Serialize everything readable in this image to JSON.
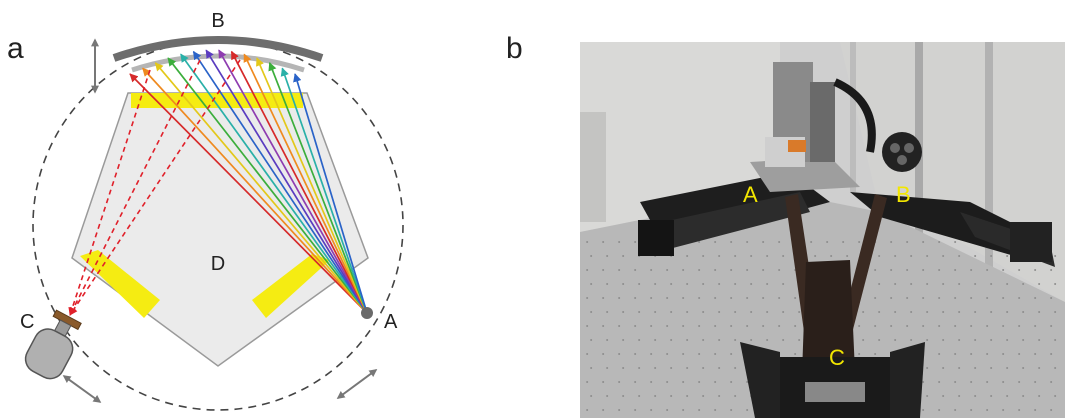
{
  "panel_a": {
    "letter": "a",
    "labels": {
      "curved_crystal": "B",
      "source": "A",
      "detector": "C",
      "sample": "D"
    }
  },
  "panel_b": {
    "letter": "b",
    "labels": {
      "stage_a": "A",
      "stage_b": "B",
      "stage_c": "C"
    }
  },
  "colors": {
    "highlight_yellow": "#f5ec12",
    "photo_label_yellow": "#f2e600",
    "dashed_ray": "#e0202a",
    "crystal_gray": "#6d6d6d",
    "pentagon_fill": "#ebebeb",
    "ray_spectrum": [
      "#d62a2a",
      "#ef8a1f",
      "#e3c81a",
      "#3cae3c",
      "#2ab0a8",
      "#2a63c8",
      "#5a3cc0",
      "#8e3cb0"
    ]
  },
  "icons": [
    "double-arrow-icon",
    "detector-icon",
    "source-point-icon"
  ]
}
